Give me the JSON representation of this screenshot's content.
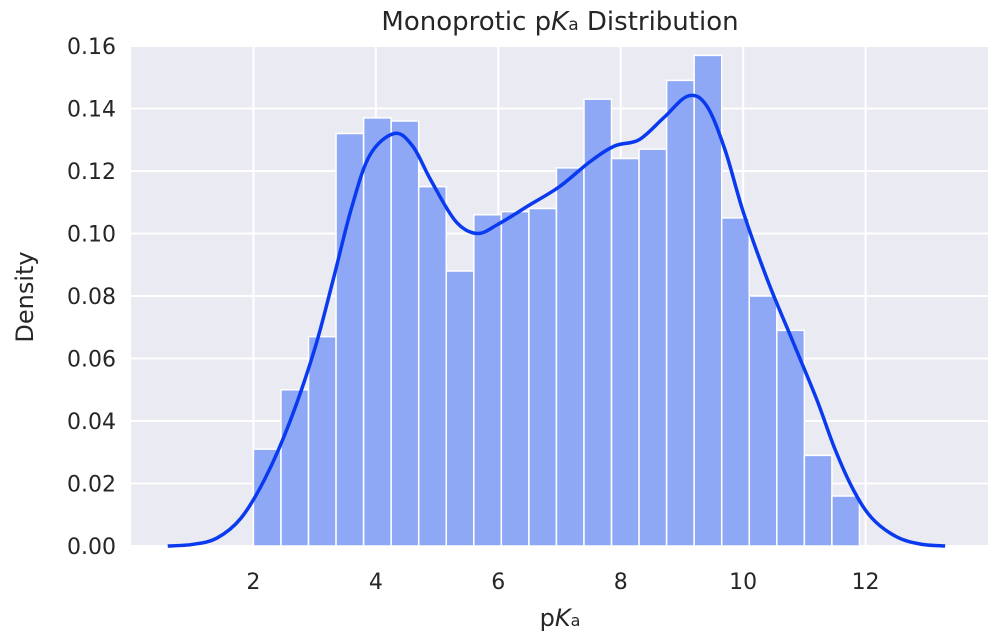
{
  "chart_data": {
    "type": "bar",
    "title": {
      "prefix": "Monoprotic p",
      "italic": "K",
      "sub": "a",
      "suffix": " Distribution"
    },
    "xlabel": {
      "prefix": "p",
      "italic": "K",
      "sub": "a"
    },
    "ylabel": "Density",
    "xlim": [
      0.0,
      14.0
    ],
    "ylim": [
      0.0,
      0.16
    ],
    "xticks": [
      2,
      4,
      6,
      8,
      10,
      12
    ],
    "xtick_labels": [
      "2",
      "4",
      "6",
      "8",
      "10",
      "12"
    ],
    "yticks": [
      0.0,
      0.02,
      0.04,
      0.06,
      0.08,
      0.1,
      0.12,
      0.14,
      0.16
    ],
    "ytick_labels": [
      "0.00",
      "0.02",
      "0.04",
      "0.06",
      "0.08",
      "0.10",
      "0.12",
      "0.14",
      "0.16"
    ],
    "grid": true,
    "bin_edges": [
      2.0,
      2.45,
      2.9,
      3.35,
      3.8,
      4.25,
      4.7,
      5.15,
      5.6,
      6.05,
      6.5,
      6.95,
      7.4,
      7.85,
      8.3,
      8.75,
      9.2,
      9.65,
      10.1,
      10.55,
      11.0,
      11.45,
      11.9
    ],
    "histogram": [
      0.031,
      0.05,
      0.067,
      0.132,
      0.137,
      0.136,
      0.115,
      0.088,
      0.106,
      0.107,
      0.108,
      0.121,
      0.143,
      0.124,
      0.127,
      0.149,
      0.157,
      0.105,
      0.08,
      0.069,
      0.029,
      0.016
    ],
    "kde": {
      "x": [
        0.6,
        1.0,
        1.4,
        1.8,
        2.2,
        2.6,
        3.0,
        3.3,
        3.6,
        3.9,
        4.3,
        4.6,
        4.9,
        5.3,
        5.65,
        6.0,
        6.5,
        7.0,
        7.5,
        7.9,
        8.3,
        8.7,
        9.1,
        9.4,
        9.7,
        10.0,
        10.4,
        10.8,
        11.2,
        11.5,
        11.8,
        12.1,
        12.5,
        12.9,
        13.3
      ],
      "y": [
        0.0,
        0.0005,
        0.0025,
        0.009,
        0.022,
        0.04,
        0.063,
        0.085,
        0.108,
        0.125,
        0.132,
        0.128,
        0.117,
        0.104,
        0.1,
        0.103,
        0.109,
        0.115,
        0.123,
        0.128,
        0.13,
        0.137,
        0.144,
        0.141,
        0.127,
        0.107,
        0.085,
        0.066,
        0.047,
        0.031,
        0.018,
        0.009,
        0.003,
        0.0006,
        0.0
      ]
    },
    "colors": {
      "background": "#eaeaf2",
      "grid": "#ffffff",
      "bar": "#8fa8f6",
      "kde": "#0a3af0"
    }
  }
}
